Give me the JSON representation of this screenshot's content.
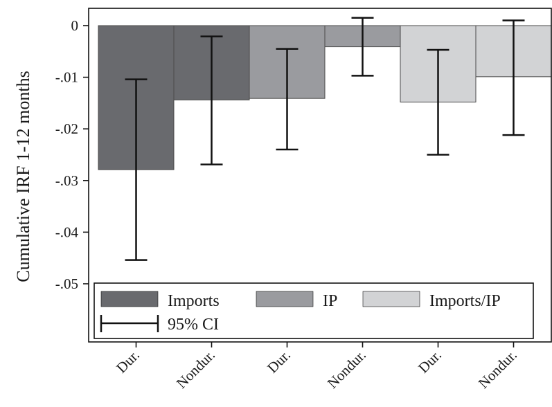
{
  "chart_data": {
    "type": "bar",
    "ylabel": "Cumulative IRF 1-12 months",
    "xlabel": "",
    "title": "",
    "categories": [
      "Dur.",
      "Nondur.",
      "Dur.",
      "Nondur.",
      "Dur.",
      "Nondur."
    ],
    "ylim": [
      -0.06,
      0.003
    ],
    "yticks": [
      0,
      -0.01,
      -0.02,
      -0.03,
      -0.04,
      -0.05
    ],
    "ytick_labels": [
      "0",
      "-.01",
      "-.02",
      "-.03",
      "-.04",
      "-.05"
    ],
    "grid": false,
    "legend_position": "bottom-inside",
    "series": [
      {
        "name": "Imports",
        "color": "#696a6e",
        "points": [
          {
            "category": "Dur.",
            "value": -0.0279,
            "ci_low": -0.0454,
            "ci_high": -0.0104
          },
          {
            "category": "Nondur.",
            "value": -0.0144,
            "ci_low": -0.0269,
            "ci_high": -0.0021
          }
        ]
      },
      {
        "name": "IP",
        "color": "#9a9b9f",
        "points": [
          {
            "category": "Dur.",
            "value": -0.0141,
            "ci_low": -0.024,
            "ci_high": -0.0045
          },
          {
            "category": "Nondur.",
            "value": -0.0041,
            "ci_low": -0.0097,
            "ci_high": 0.0015
          }
        ]
      },
      {
        "name": "Imports/IP",
        "color": "#d2d3d5",
        "points": [
          {
            "category": "Dur.",
            "value": -0.0148,
            "ci_low": -0.025,
            "ci_high": -0.0047
          },
          {
            "category": "Nondur.",
            "value": -0.0099,
            "ci_low": -0.0212,
            "ci_high": 0.001
          }
        ]
      }
    ],
    "legend": {
      "entries": [
        "Imports",
        "IP",
        "Imports/IP"
      ],
      "ci_label": "95% CI"
    }
  }
}
